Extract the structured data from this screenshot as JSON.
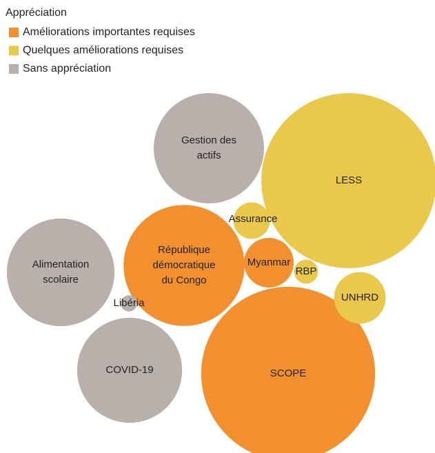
{
  "chart_data": {
    "type": "bubble",
    "legend_title": "Appréciation",
    "legend": "top-left",
    "series": [
      {
        "name": "Améliorations importantes requises",
        "color": "#f29030",
        "labels": [
          [
            "République",
            "démocratique",
            "du Congo"
          ],
          [
            "Myanmar"
          ],
          [
            "SCOPE"
          ]
        ],
        "values": [
          77,
          13,
          159
        ]
      },
      {
        "name": "Quelques améliorations requises",
        "color": "#e9c84b",
        "labels": [
          [
            "LESS"
          ],
          [
            "Assurance"
          ],
          [
            "RBP"
          ],
          [
            "UNHRD"
          ]
        ],
        "values": [
          161,
          7,
          3,
          14
        ]
      },
      {
        "name": "Sans appréciation",
        "color": "#b9b0ab",
        "labels": [
          [
            "Gestion des",
            "actifs"
          ],
          [
            "Alimentation",
            "scolaire"
          ],
          [
            "Libéria"
          ],
          [
            "COVID-19"
          ]
        ],
        "values": [
          64,
          61,
          1.4,
          58
        ]
      }
    ]
  }
}
